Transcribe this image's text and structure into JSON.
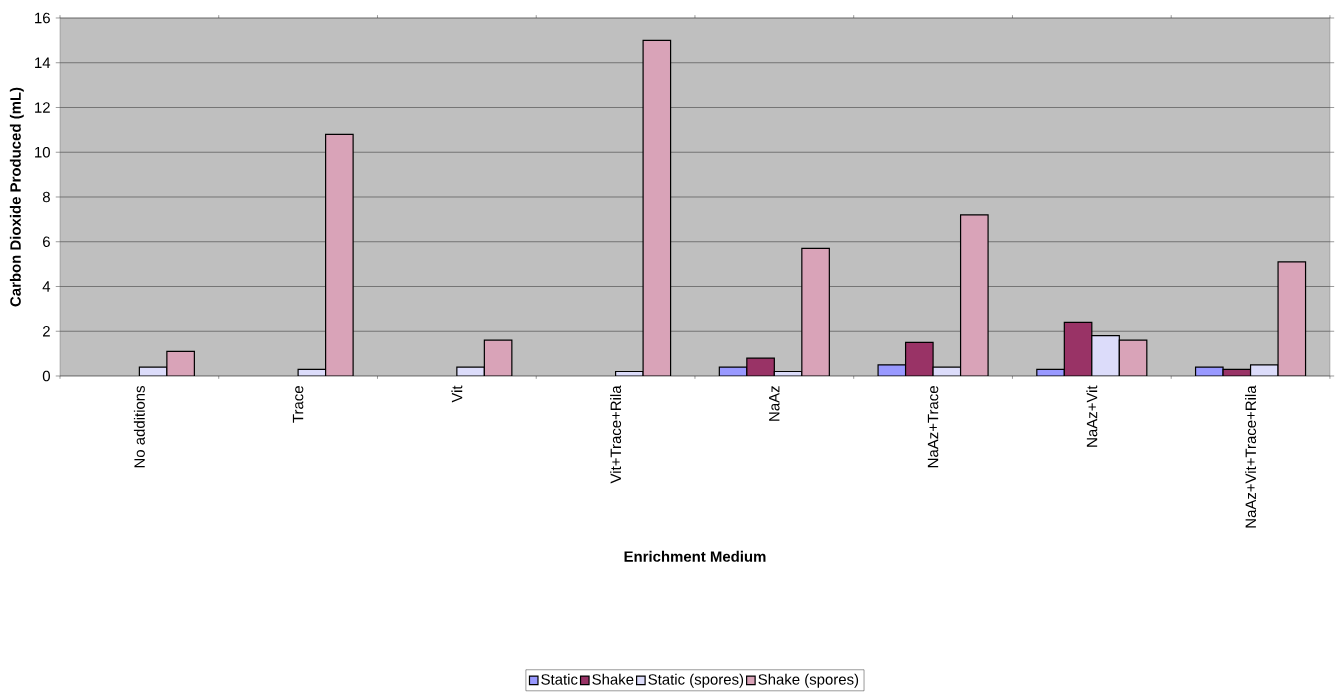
{
  "chart_data": {
    "type": "bar",
    "xlabel": "Enrichment Medium",
    "ylabel": "Carbon Dioxide Produced (mL)",
    "categories": [
      "No additions",
      "Trace",
      "Vit",
      "Vit+Trace+Rila",
      "NaAz",
      "NaAz+Trace",
      "NaAz+Vit",
      "NaAz+Vit+Trace+Rila"
    ],
    "series": [
      {
        "name": "Static",
        "color": "#9999ff",
        "values": [
          null,
          null,
          null,
          null,
          0.4,
          0.5,
          0.3,
          0.4
        ]
      },
      {
        "name": "Shake",
        "color": "#993366",
        "values": [
          null,
          null,
          null,
          null,
          0.8,
          1.5,
          2.4,
          0.3
        ]
      },
      {
        "name": "Static (spores)",
        "color": "#dcdcfa",
        "values": [
          0.4,
          0.3,
          0.4,
          0.2,
          0.2,
          0.4,
          1.8,
          0.5
        ]
      },
      {
        "name": "Shake (spores)",
        "color": "#d9a3b8",
        "values": [
          1.1,
          10.8,
          1.6,
          15.0,
          5.7,
          7.2,
          1.6,
          5.1
        ]
      }
    ],
    "ylim": [
      0,
      16
    ],
    "yticks": [
      0,
      2,
      4,
      6,
      8,
      10,
      12,
      14,
      16
    ],
    "grid": "y",
    "legend": "bottom"
  }
}
